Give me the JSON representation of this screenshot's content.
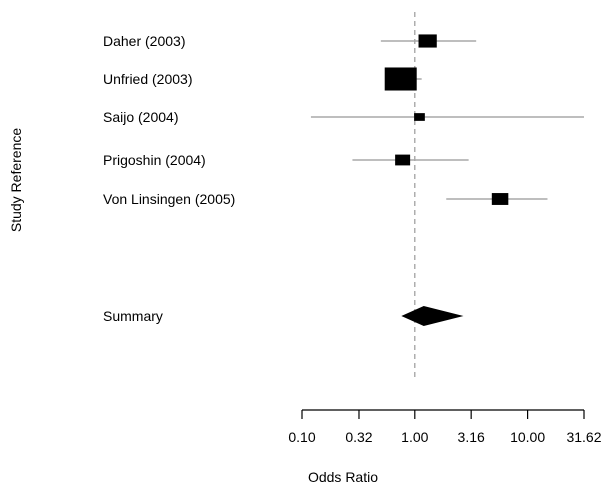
{
  "chart_data": {
    "type": "forest",
    "ylabel": "Study Reference",
    "xlabel": "Odds Ratio",
    "x_scale": "log",
    "xlim": [
      0.1,
      31.62
    ],
    "reference_line": 1.0,
    "x_ticks": [
      0.1,
      0.32,
      1.0,
      3.16,
      10.0,
      31.62
    ],
    "x_tick_labels": [
      "0.10",
      "0.32",
      "1.00",
      "3.16",
      "10.00",
      "31.62"
    ],
    "studies": [
      {
        "label": "Daher (2003)",
        "or": 1.3,
        "ci_low": 0.5,
        "ci_high": 3.5,
        "weight": 0.45
      },
      {
        "label": "Unfried (2003)",
        "or": 0.75,
        "ci_low": 0.55,
        "ci_high": 1.15,
        "weight": 1.0
      },
      {
        "label": "Saijo (2004)",
        "or": 1.1,
        "ci_low": 0.12,
        "ci_high": 31.62,
        "weight": 0.15
      },
      {
        "label": "Prigoshin (2004)",
        "or": 0.78,
        "ci_low": 0.28,
        "ci_high": 3.0,
        "weight": 0.32
      },
      {
        "label": "Von Linsingen (2005)",
        "or": 5.7,
        "ci_low": 1.9,
        "ci_high": 15.0,
        "weight": 0.38
      }
    ],
    "summary": {
      "label": "Summary",
      "or": 1.2,
      "ci_low": 0.76,
      "ci_high": 2.7
    },
    "grid": false,
    "legend": false
  }
}
